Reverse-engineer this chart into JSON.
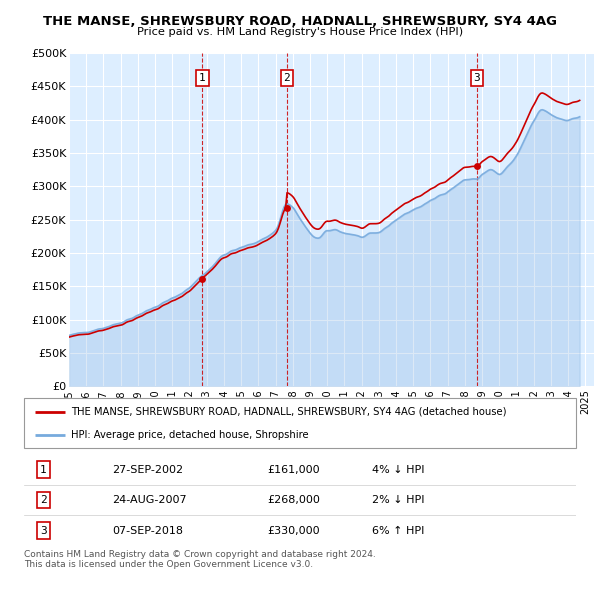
{
  "title": "THE MANSE, SHREWSBURY ROAD, HADNALL, SHREWSBURY, SY4 4AG",
  "subtitle": "Price paid vs. HM Land Registry's House Price Index (HPI)",
  "ylim": [
    0,
    500000
  ],
  "yticks": [
    0,
    50000,
    100000,
    150000,
    200000,
    250000,
    300000,
    350000,
    400000,
    450000,
    500000
  ],
  "ytick_labels": [
    "£0",
    "£50K",
    "£100K",
    "£150K",
    "£200K",
    "£250K",
    "£300K",
    "£350K",
    "£400K",
    "£450K",
    "£500K"
  ],
  "background_color": "#ddeeff",
  "grid_color": "#ffffff",
  "hpi_color": "#77aadd",
  "price_color": "#cc0000",
  "transactions": [
    {
      "num": 1,
      "date": "27-SEP-2002",
      "price": 161000,
      "pct": "4%",
      "dir": "↓",
      "x_year": 2002.75
    },
    {
      "num": 2,
      "date": "24-AUG-2007",
      "price": 268000,
      "pct": "2%",
      "dir": "↓",
      "x_year": 2007.65
    },
    {
      "num": 3,
      "date": "07-SEP-2018",
      "price": 330000,
      "pct": "6%",
      "dir": "↑",
      "x_year": 2018.7
    }
  ],
  "legend_property_label": "THE MANSE, SHREWSBURY ROAD, HADNALL, SHREWSBURY, SY4 4AG (detached house)",
  "legend_hpi_label": "HPI: Average price, detached house, Shropshire",
  "footer": "Contains HM Land Registry data © Crown copyright and database right 2024.\nThis data is licensed under the Open Government Licence v3.0.",
  "xlim_start": 1995,
  "xlim_end": 2025.5
}
